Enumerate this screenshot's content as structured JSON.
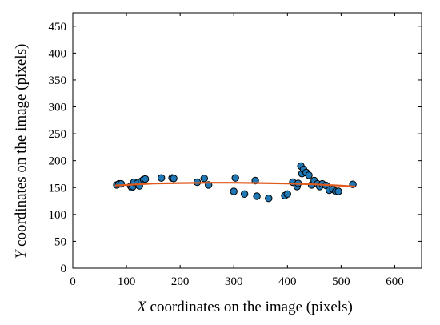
{
  "chart_data": {
    "type": "scatter",
    "title": "",
    "xlabel": {
      "variable": "X",
      "text": " coordinates on the image (pixels)"
    },
    "ylabel": {
      "variable": "Y",
      "text": " coordinates on the image (pixels)"
    },
    "xlim": [
      0,
      650
    ],
    "ylim": [
      0,
      475
    ],
    "xticks": [
      0,
      100,
      200,
      300,
      400,
      500,
      600
    ],
    "yticks": [
      0,
      50,
      100,
      150,
      200,
      250,
      300,
      350,
      400,
      450
    ],
    "grid": false,
    "legend": "none",
    "series": [
      {
        "kind": "points",
        "color": "#1f77b4",
        "edge_color": "#000000",
        "x": [
          82,
          86,
          90,
          108,
          110,
          112,
          114,
          120,
          124,
          128,
          132,
          135,
          165,
          185,
          188,
          232,
          245,
          253,
          300,
          303,
          320,
          340,
          343,
          365,
          395,
          400,
          410,
          418,
          420,
          425,
          427,
          430,
          435,
          440,
          445,
          450,
          456,
          460,
          465,
          472,
          478,
          485,
          490,
          495,
          522
        ],
        "y": [
          155,
          157,
          157,
          153,
          150,
          152,
          160,
          158,
          153,
          162,
          165,
          166,
          168,
          168,
          167,
          160,
          167,
          155,
          143,
          168,
          138,
          163,
          134,
          130,
          135,
          138,
          160,
          152,
          158,
          190,
          176,
          184,
          178,
          173,
          155,
          163,
          157,
          152,
          157,
          154,
          145,
          147,
          143,
          143,
          156
        ]
      },
      {
        "kind": "fit-curve",
        "color": "#e05a1e",
        "x": [
          80,
          150,
          200,
          250,
          300,
          350,
          400,
          450,
          500,
          525
        ],
        "y": [
          154,
          157.5,
          158.5,
          159,
          159,
          158.5,
          157.5,
          156,
          153.5,
          152
        ]
      }
    ]
  }
}
